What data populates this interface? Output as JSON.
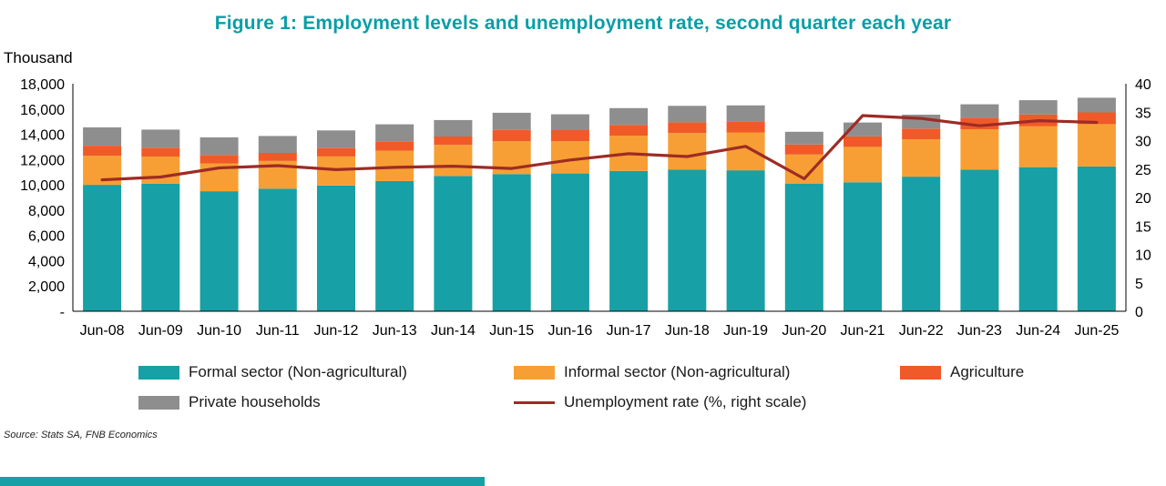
{
  "title": "Figure 1: Employment levels and unemployment rate, second quarter each year",
  "y_axis_title": "Thousand",
  "source": "Source: Stats SA, FNB Economics",
  "colors": {
    "title": "#089EA6",
    "formal": "#17A0A5",
    "informal": "#F79F34",
    "agriculture": "#F05A28",
    "private_households": "#8E8E8E",
    "unemployment_line": "#9E2B25",
    "footer_bar": "#17A0A5"
  },
  "chart_data": {
    "type": "bar",
    "subtype": "stacked-bars-with-line",
    "grid": false,
    "legend_position": "bottom",
    "categories": [
      "Jun-08",
      "Jun-09",
      "Jun-10",
      "Jun-11",
      "Jun-12",
      "Jun-13",
      "Jun-14",
      "Jun-15",
      "Jun-16",
      "Jun-17",
      "Jun-18",
      "Jun-19",
      "Jun-20",
      "Jun-21",
      "Jun-22",
      "Jun-23",
      "Jun-24",
      "Jun-25"
    ],
    "series": [
      {
        "name": "Formal sector (Non-agricultural)",
        "color": "#17A0A5",
        "values": [
          10000,
          10090,
          9500,
          9700,
          9950,
          10300,
          10700,
          10850,
          10900,
          11100,
          11200,
          11150,
          10100,
          10200,
          10650,
          11200,
          11400,
          11450
        ]
      },
      {
        "name": "Informal sector (Non-agricultural)",
        "color": "#F79F34",
        "values": [
          2300,
          2150,
          2200,
          2200,
          2300,
          2400,
          2450,
          2600,
          2550,
          2800,
          2900,
          3000,
          2300,
          2800,
          2950,
          3200,
          3250,
          3350
        ]
      },
      {
        "name": "Agriculture",
        "color": "#F05A28",
        "values": [
          800,
          700,
          660,
          630,
          660,
          740,
          680,
          900,
          880,
          840,
          850,
          840,
          800,
          830,
          850,
          890,
          920,
          930
        ]
      },
      {
        "name": "Private households",
        "color": "#8E8E8E",
        "values": [
          1450,
          1430,
          1400,
          1340,
          1400,
          1350,
          1300,
          1350,
          1250,
          1330,
          1300,
          1300,
          1000,
          1100,
          1100,
          1080,
          1130,
          1160
        ]
      }
    ],
    "line_series": {
      "name": "Unemployment rate (%, right scale)",
      "color": "#9E2B25",
      "axis": "right",
      "values": [
        23.1,
        23.6,
        25.2,
        25.6,
        24.9,
        25.3,
        25.5,
        25.1,
        26.6,
        27.7,
        27.2,
        29.0,
        23.3,
        34.4,
        33.9,
        32.6,
        33.5,
        33.2
      ]
    },
    "left_axis": {
      "min": 0,
      "max": 18000,
      "step": 2000,
      "tick_labels_top_to_bottom": [
        "18,000",
        "16,000",
        "14,000",
        "12,000",
        "10,000",
        "8,000",
        "6,000",
        "4,000",
        "2,000",
        "-"
      ]
    },
    "right_axis": {
      "min": 0,
      "max": 40,
      "step": 5,
      "tick_labels_top_to_bottom": [
        "40",
        "35",
        "30",
        "25",
        "20",
        "15",
        "10",
        "5",
        "0"
      ]
    }
  }
}
